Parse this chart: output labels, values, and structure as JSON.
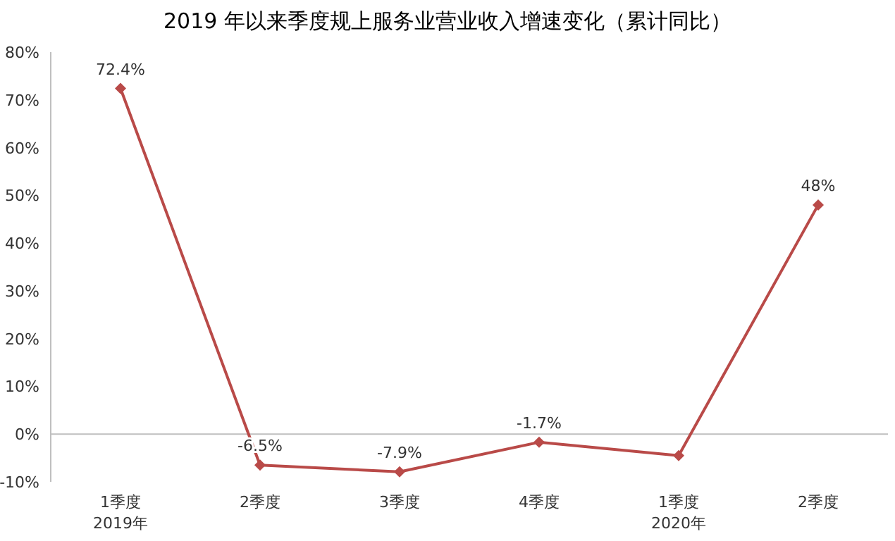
{
  "chart_data": {
    "type": "line",
    "title": "2019 年以来季度规上服务业营业收入增速变化（累计同比）",
    "categories": [
      "1季度\n2019年",
      "2季度",
      "3季度",
      "4季度",
      "1季度\n2020年",
      "2季度"
    ],
    "series": [
      {
        "color": "#b94a48",
        "values": [
          72.4,
          -6.5,
          -7.9,
          -1.7,
          -4.5,
          48
        ]
      }
    ],
    "value_labels": [
      "72.4%",
      "-6.5%",
      "-7.9%",
      "-1.7%",
      null,
      "48%"
    ],
    "ylim": [
      -10,
      80
    ],
    "yticks": [
      {
        "value": -10,
        "label": "-10%"
      },
      {
        "value": 0,
        "label": "0%"
      },
      {
        "value": 10,
        "label": "10%"
      },
      {
        "value": 20,
        "label": "20%"
      },
      {
        "value": 30,
        "label": "30%"
      },
      {
        "value": 40,
        "label": "40%"
      },
      {
        "value": 50,
        "label": "50%"
      },
      {
        "value": 60,
        "label": "60%"
      },
      {
        "value": 70,
        "label": "70%"
      },
      {
        "value": 80,
        "label": "80%"
      }
    ],
    "marker": "diamond"
  }
}
